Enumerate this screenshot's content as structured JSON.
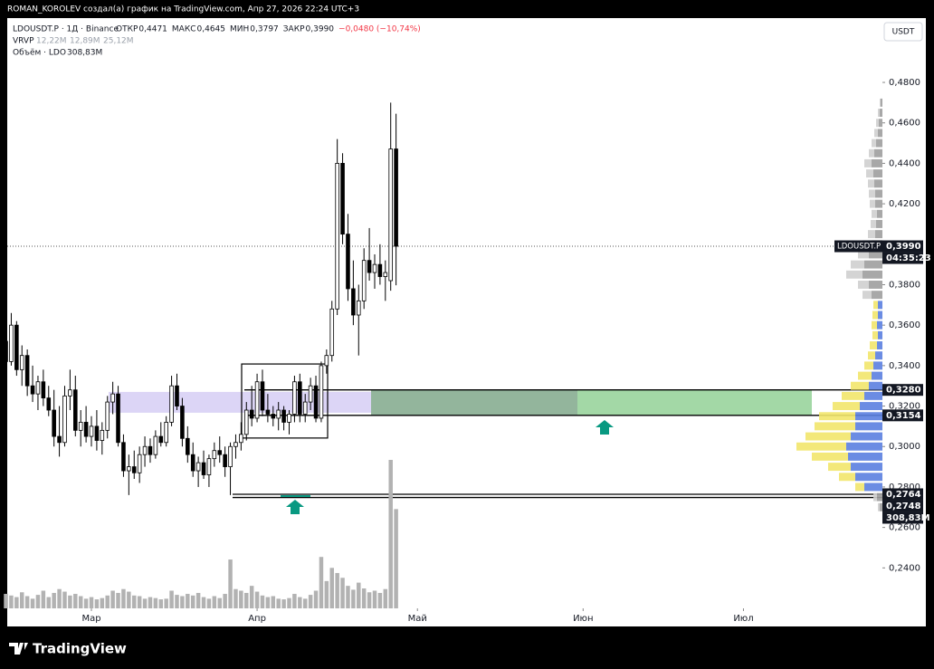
{
  "header": {
    "author_line": "ROMAN_KOROLEV создал(а) график на TradingView.com, Апр 27, 2026 22:24 UTC+3",
    "symbol": "LDOUSDT.P · 1Д · Binance",
    "ohlc": [
      [
        "ОТКР",
        "0,4471"
      ],
      [
        "МАКС",
        "0,4645"
      ],
      [
        "МИН",
        "0,3797"
      ],
      [
        "ЗАКР",
        "0,3990"
      ]
    ],
    "change": "−0,0480 (−10,74%)",
    "vrvp": [
      "VRVP",
      "12,22M",
      "12,89M",
      "25,12M"
    ],
    "volume": "Объём · LDO"
  },
  "footer": {
    "brand": "TradingView"
  },
  "chart_data": {
    "type": "candlestick",
    "currency": "USDT",
    "up_color": "#ffffff",
    "down_color": "#000000",
    "volume_color": "#b2b2b2",
    "x": [
      0,
      1,
      2,
      3,
      4,
      5,
      6,
      7,
      8,
      9,
      10,
      11,
      12,
      13,
      14,
      15,
      16,
      17,
      18,
      19,
      20,
      21,
      22,
      23,
      24,
      25,
      26,
      27,
      28,
      29,
      30,
      31,
      32,
      33,
      34,
      35,
      36,
      37,
      38,
      39,
      40,
      41,
      42,
      43,
      44,
      45,
      46,
      47,
      48,
      49,
      50,
      51,
      52,
      53,
      54,
      55,
      56,
      57,
      58,
      59,
      60,
      61,
      62,
      63,
      64,
      65,
      66,
      67,
      68,
      69,
      70,
      71,
      72,
      73
    ],
    "open": [
      0.352,
      0.342,
      0.36,
      0.338,
      0.345,
      0.33,
      0.326,
      0.332,
      0.324,
      0.318,
      0.305,
      0.302,
      0.325,
      0.328,
      0.308,
      0.312,
      0.305,
      0.31,
      0.303,
      0.308,
      0.322,
      0.326,
      0.302,
      0.288,
      0.29,
      0.287,
      0.296,
      0.3,
      0.296,
      0.305,
      0.302,
      0.312,
      0.33,
      0.32,
      0.304,
      0.296,
      0.288,
      0.292,
      0.286,
      0.294,
      0.298,
      0.296,
      0.29,
      0.3,
      0.302,
      0.306,
      0.318,
      0.314,
      0.332,
      0.318,
      0.316,
      0.314,
      0.318,
      0.312,
      0.316,
      0.332,
      0.316,
      0.322,
      0.33,
      0.314,
      0.34,
      0.345,
      0.368,
      0.44,
      0.405,
      0.378,
      0.365,
      0.372,
      0.392,
      0.386,
      0.39,
      0.384,
      0.382,
      0.4471
    ],
    "high": [
      0.36,
      0.366,
      0.362,
      0.35,
      0.348,
      0.34,
      0.335,
      0.338,
      0.33,
      0.328,
      0.32,
      0.33,
      0.338,
      0.335,
      0.318,
      0.32,
      0.315,
      0.318,
      0.312,
      0.325,
      0.332,
      0.33,
      0.306,
      0.296,
      0.298,
      0.3,
      0.305,
      0.304,
      0.308,
      0.312,
      0.315,
      0.335,
      0.336,
      0.324,
      0.31,
      0.302,
      0.295,
      0.298,
      0.296,
      0.302,
      0.305,
      0.3,
      0.302,
      0.306,
      0.312,
      0.322,
      0.33,
      0.336,
      0.338,
      0.326,
      0.32,
      0.322,
      0.32,
      0.318,
      0.335,
      0.336,
      0.326,
      0.334,
      0.335,
      0.342,
      0.348,
      0.372,
      0.452,
      0.445,
      0.415,
      0.392,
      0.38,
      0.398,
      0.408,
      0.395,
      0.4,
      0.392,
      0.47,
      0.4645
    ],
    "low": [
      0.338,
      0.34,
      0.335,
      0.33,
      0.325,
      0.322,
      0.318,
      0.32,
      0.315,
      0.3,
      0.295,
      0.3,
      0.318,
      0.305,
      0.3,
      0.302,
      0.3,
      0.298,
      0.296,
      0.304,
      0.316,
      0.3,
      0.285,
      0.276,
      0.284,
      0.282,
      0.29,
      0.292,
      0.294,
      0.3,
      0.3,
      0.31,
      0.318,
      0.3,
      0.292,
      0.285,
      0.28,
      0.284,
      0.28,
      0.29,
      0.292,
      0.285,
      0.276,
      0.294,
      0.298,
      0.303,
      0.31,
      0.312,
      0.315,
      0.312,
      0.31,
      0.308,
      0.308,
      0.306,
      0.312,
      0.312,
      0.312,
      0.318,
      0.312,
      0.312,
      0.336,
      0.342,
      0.365,
      0.4,
      0.372,
      0.36,
      0.345,
      0.368,
      0.382,
      0.378,
      0.38,
      0.372,
      0.377,
      0.3797
    ],
    "close": [
      0.342,
      0.36,
      0.338,
      0.345,
      0.33,
      0.326,
      0.332,
      0.324,
      0.318,
      0.305,
      0.302,
      0.325,
      0.328,
      0.308,
      0.312,
      0.305,
      0.31,
      0.303,
      0.308,
      0.322,
      0.326,
      0.302,
      0.288,
      0.29,
      0.287,
      0.296,
      0.3,
      0.296,
      0.305,
      0.302,
      0.312,
      0.33,
      0.32,
      0.304,
      0.296,
      0.288,
      0.292,
      0.286,
      0.294,
      0.298,
      0.296,
      0.29,
      0.3,
      0.302,
      0.306,
      0.318,
      0.314,
      0.332,
      0.318,
      0.316,
      0.314,
      0.318,
      0.312,
      0.316,
      0.332,
      0.316,
      0.322,
      0.33,
      0.314,
      0.34,
      0.345,
      0.368,
      0.44,
      0.405,
      0.378,
      0.365,
      0.372,
      0.392,
      0.386,
      0.39,
      0.384,
      0.386,
      0.4471,
      0.399
    ],
    "volume": [
      45,
      40,
      35,
      50,
      38,
      30,
      42,
      55,
      35,
      48,
      60,
      52,
      40,
      45,
      38,
      30,
      35,
      28,
      32,
      40,
      55,
      48,
      60,
      52,
      40,
      38,
      30,
      35,
      32,
      28,
      30,
      55,
      42,
      38,
      45,
      40,
      48,
      35,
      30,
      38,
      32,
      45,
      152,
      60,
      55,
      48,
      70,
      52,
      40,
      35,
      38,
      30,
      28,
      32,
      45,
      35,
      30,
      42,
      55,
      160,
      85,
      126,
      110,
      95,
      70,
      58,
      80,
      62,
      50,
      55,
      48,
      60,
      462,
      308.83
    ],
    "last_volume_label": "308,83M",
    "xlim": [
      0.25,
      164
    ],
    "xticks": [
      {
        "value": 16,
        "label": "Мар"
      },
      {
        "value": 47,
        "label": "Апр"
      },
      {
        "value": 77,
        "label": "Май"
      },
      {
        "value": 108,
        "label": "Июн"
      },
      {
        "value": 138,
        "label": "Июл"
      }
    ],
    "ylim": [
      0.22,
      0.51
    ],
    "yticks": [
      {
        "value": 0.24,
        "label": "0,2400"
      },
      {
        "value": 0.26,
        "label": "0,2600"
      },
      {
        "value": 0.28,
        "label": "0,2800"
      },
      {
        "value": 0.3,
        "label": "0,3000"
      },
      {
        "value": 0.32,
        "label": "0,3200"
      },
      {
        "value": 0.34,
        "label": "0,3400"
      },
      {
        "value": 0.36,
        "label": "0,3600"
      },
      {
        "value": 0.38,
        "label": "0,3800"
      },
      {
        "value": 0.4,
        "label": "0,4000"
      },
      {
        "value": 0.42,
        "label": "0,4200"
      },
      {
        "value": 0.44,
        "label": "0,4400"
      },
      {
        "value": 0.46,
        "label": "0,4600"
      },
      {
        "value": 0.48,
        "label": "0,4800"
      }
    ],
    "last_price": {
      "value": 0.399,
      "label": "0,3990",
      "symbol": "LDOUSDT.P",
      "countdown": "04:35:23"
    },
    "levels": [
      {
        "value": 0.328,
        "label": "0,3280"
      },
      {
        "value": 0.3154,
        "label": "0,3154"
      },
      {
        "value": 0.2764,
        "label": "0,2764"
      },
      {
        "value": 0.2748,
        "label": "0,2748"
      }
    ],
    "zones": [
      {
        "ylim": [
          0.3167,
          0.327
        ],
        "color": "#dcd5f6"
      },
      {
        "ylim": [
          0.3042,
          0.3408
        ],
        "color": "none"
      }
    ],
    "vrvp": {
      "prices": [
        0.27,
        0.275,
        0.28,
        0.285,
        0.29,
        0.295,
        0.3,
        0.305,
        0.31,
        0.315,
        0.32,
        0.325,
        0.33,
        0.335,
        0.34,
        0.345,
        0.35,
        0.355,
        0.36,
        0.365,
        0.37,
        0.375,
        0.38,
        0.385,
        0.39,
        0.395,
        0.4,
        0.405,
        0.41,
        0.415,
        0.42,
        0.425,
        0.43,
        0.435,
        0.44,
        0.445,
        0.45,
        0.455,
        0.46,
        0.465,
        0.47
      ],
      "up": [
        0.06,
        0.12,
        0.4,
        0.6,
        0.7,
        0.76,
        0.8,
        0.7,
        0.6,
        0.6,
        0.5,
        0.4,
        0.3,
        0.24,
        0.2,
        0.16,
        0.12,
        0.1,
        0.12,
        0.1,
        0.1,
        0.24,
        0.3,
        0.44,
        0.4,
        0.3,
        0.24,
        0.16,
        0.14,
        0.12,
        0.16,
        0.16,
        0.18,
        0.2,
        0.24,
        0.18,
        0.14,
        0.1,
        0.08,
        0.06,
        0.04
      ],
      "down": [
        0.04,
        0.08,
        0.2,
        0.36,
        0.5,
        0.8,
        1.1,
        1,
        0.9,
        0.8,
        0.6,
        0.5,
        0.4,
        0.3,
        0.2,
        0.16,
        0.16,
        0.12,
        0.12,
        0.12,
        0.1,
        0.2,
        0.24,
        0.36,
        0.3,
        0.24,
        0.2,
        0.16,
        0.12,
        0.12,
        0.12,
        0.14,
        0.14,
        0.16,
        0.16,
        0.12,
        0.1,
        0.08,
        0.06,
        0.04,
        0.02
      ],
      "value_area": [
        0.277,
        0.372
      ],
      "up_color": "#5b7fe0",
      "down_color": "#f2e66b",
      "outside_up_color": "#9e9e9e",
      "outside_down_color": "#cfcfcf"
    }
  }
}
